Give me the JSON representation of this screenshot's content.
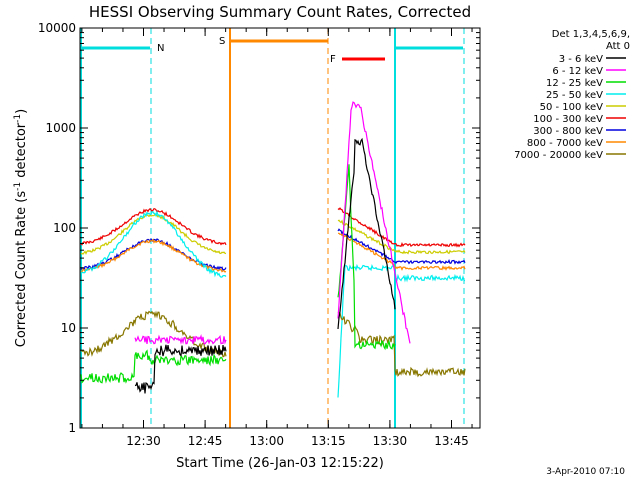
{
  "chart_data": {
    "type": "line",
    "title": "HESSI Observing Summary Count Rates, Corrected",
    "xlabel": "Start Time (26-Jan-03 12:15:22)",
    "ylabel_main": "Corrected Count Rate (s",
    "ylabel_sup": "-1",
    "ylabel_mid": " detector",
    "ylabel_sup2": "-1",
    "ylabel_end": ")",
    "y_scale": "log",
    "ylim": [
      1,
      10000
    ],
    "y_ticks": [
      "1",
      "10",
      "100",
      "1000",
      "10000"
    ],
    "x_ticks": [
      "12:30",
      "12:45",
      "13:00",
      "13:15",
      "13:30",
      "13:45"
    ],
    "legend_header_1": "Det 1,3,4,5,6,9,",
    "legend_header_2": "Att 0",
    "legend_placement": "right",
    "series": [
      {
        "name": "3 - 6 keV",
        "color": "#000000"
      },
      {
        "name": "6 - 12 keV",
        "color": "#ff00ff"
      },
      {
        "name": "12 - 25 keV",
        "color": "#00dd00"
      },
      {
        "name": "25 - 50 keV",
        "color": "#00eeee"
      },
      {
        "name": "50 - 100 keV",
        "color": "#cccc00"
      },
      {
        "name": "100 - 300 keV",
        "color": "#ee0000"
      },
      {
        "name": "300 - 800 keV",
        "color": "#0000dd"
      },
      {
        "name": "800 - 7000 keV",
        "color": "#ff8800"
      },
      {
        "name": "7000 - 20000 keV",
        "color": "#887700"
      }
    ],
    "markers": [
      {
        "label": "N",
        "color": "#00dddd"
      },
      {
        "label": "S",
        "color": "#ff8800"
      },
      {
        "label": "F",
        "color": "#ff0000"
      }
    ]
  },
  "footer_timestamp": "3-Apr-2010 07:10"
}
